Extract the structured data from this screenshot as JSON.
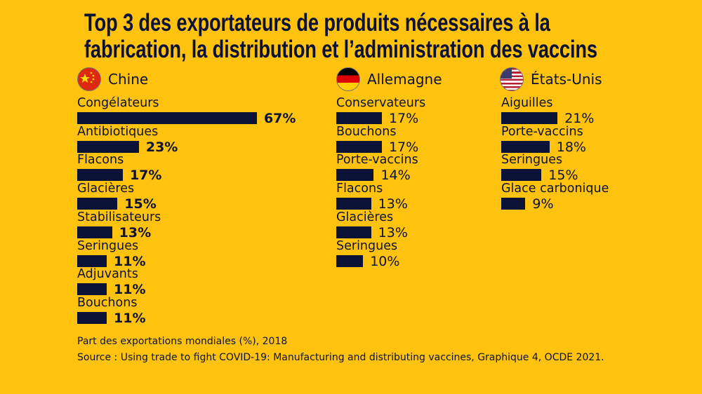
{
  "chart_data": {
    "type": "bar",
    "orientation": "horizontal",
    "title": "Top 3 des exportateurs de produits nécessaires à la fabrication, la distribution et l’administration des vaccins",
    "unit": "%",
    "xlim": [
      0,
      70
    ],
    "grid": false,
    "colors": {
      "background": "#FFC20E",
      "bar": "#0A1238",
      "text": "#0B1233"
    },
    "panels": [
      {
        "country": "Chine",
        "flag": "china-flag",
        "categories": [
          "Congélateurs",
          "Antibiotiques",
          "Flacons",
          "Glacières",
          "Stabilisateurs",
          "Seringues",
          "Adjuvants",
          "Bouchons"
        ],
        "values": [
          67,
          23,
          17,
          15,
          13,
          11,
          11,
          11
        ],
        "labels": [
          "67%",
          "23%",
          "17%",
          "15%",
          "13%",
          "11%",
          "11%",
          "11%"
        ]
      },
      {
        "country": "Allemagne",
        "flag": "germany-flag",
        "categories": [
          "Conservateurs",
          "Bouchons",
          "Porte-vaccins",
          "Flacons",
          "Glacières",
          "Seringues"
        ],
        "values": [
          17,
          17,
          14,
          13,
          13,
          10
        ],
        "labels": [
          "17%",
          "17%",
          "14%",
          "13%",
          "13%",
          "10%"
        ]
      },
      {
        "country": "États-Unis",
        "flag": "usa-flag",
        "categories": [
          "Aiguilles",
          "Porte-vaccins",
          "Seringues",
          "Glace carbonique"
        ],
        "values": [
          21,
          18,
          15,
          9
        ],
        "labels": [
          "21%",
          "18%",
          "15%",
          "9%"
        ]
      }
    ],
    "note": "Part des exportations mondiales (%), 2018",
    "source": "Source : Using trade to fight COVID-19: Manufacturing and distributing vaccines, Graphique 4, OCDE 2021."
  }
}
